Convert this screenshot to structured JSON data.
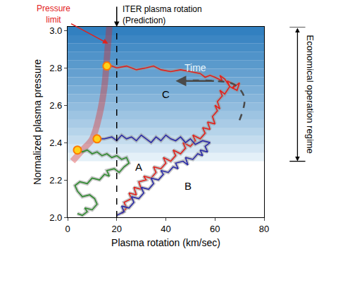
{
  "chart_data": {
    "type": "line",
    "x_label": "Plasma rotation (km/sec)",
    "y_label": "Normalized plasma pressure",
    "xlim": [
      0,
      80
    ],
    "xticks": [
      0,
      20,
      40,
      60,
      80
    ],
    "ylim": [
      2.0,
      3.02
    ],
    "yticks": [
      {
        "value": 2.0,
        "label": "2.0"
      },
      {
        "value": 2.2,
        "label": "2.2"
      },
      {
        "value": 2.4,
        "label": "2.4"
      },
      {
        "value": 2.6,
        "label": "2.6"
      },
      {
        "value": 2.8,
        "label": "2.8"
      },
      {
        "value": 3.0,
        "label": "3.0"
      }
    ],
    "grid": false,
    "series": [
      {
        "name": "C",
        "color": "#e3201b",
        "marker": "circle",
        "label": {
          "x": 40,
          "y": 2.66
        },
        "x": [
          22,
          24,
          23,
          26,
          25,
          28,
          27,
          30,
          29,
          32,
          31,
          34,
          36,
          35,
          38,
          40,
          39,
          42,
          44,
          43,
          46,
          48,
          47,
          50,
          52,
          51,
          54,
          56,
          55,
          58,
          57,
          60,
          59,
          61,
          60,
          62,
          61,
          63,
          62,
          64,
          66,
          65,
          68,
          67,
          70,
          69,
          66,
          64,
          62,
          63,
          60,
          58,
          56,
          54,
          50,
          46,
          42,
          38,
          35,
          32,
          28,
          24,
          20,
          18,
          16
        ],
        "values": [
          2.02,
          2.05,
          2.08,
          2.1,
          2.13,
          2.12,
          2.16,
          2.15,
          2.19,
          2.2,
          2.22,
          2.21,
          2.24,
          2.27,
          2.26,
          2.29,
          2.32,
          2.3,
          2.33,
          2.36,
          2.34,
          2.37,
          2.4,
          2.38,
          2.41,
          2.44,
          2.42,
          2.45,
          2.48,
          2.47,
          2.51,
          2.5,
          2.54,
          2.57,
          2.6,
          2.58,
          2.62,
          2.65,
          2.68,
          2.66,
          2.7,
          2.73,
          2.71,
          2.69,
          2.72,
          2.68,
          2.7,
          2.74,
          2.76,
          2.73,
          2.75,
          2.76,
          2.75,
          2.77,
          2.78,
          2.79,
          2.78,
          2.79,
          2.81,
          2.8,
          2.79,
          2.81,
          2.8,
          2.81,
          2.81
        ]
      },
      {
        "name": "B",
        "color": "#2a2aa8",
        "marker": "circle",
        "label": {
          "x": 49,
          "y": 2.17
        },
        "x": [
          20,
          23,
          22,
          25,
          27,
          26,
          29,
          31,
          30,
          33,
          35,
          34,
          37,
          39,
          38,
          41,
          43,
          45,
          44,
          47,
          49,
          48,
          51,
          53,
          55,
          54,
          57,
          56,
          58,
          55,
          52,
          50,
          48,
          46,
          44,
          42,
          40,
          38,
          36,
          34,
          32,
          30,
          28,
          26,
          24,
          22,
          20,
          18,
          15,
          12
        ],
        "values": [
          2.01,
          2.03,
          2.06,
          2.05,
          2.08,
          2.11,
          2.1,
          2.13,
          2.16,
          2.15,
          2.18,
          2.21,
          2.2,
          2.23,
          2.25,
          2.24,
          2.27,
          2.26,
          2.29,
          2.3,
          2.28,
          2.32,
          2.31,
          2.34,
          2.33,
          2.36,
          2.35,
          2.38,
          2.4,
          2.41,
          2.39,
          2.42,
          2.4,
          2.43,
          2.41,
          2.42,
          2.44,
          2.41,
          2.43,
          2.4,
          2.42,
          2.44,
          2.41,
          2.43,
          2.42,
          2.44,
          2.41,
          2.43,
          2.42,
          2.42
        ]
      },
      {
        "name": "A",
        "color": "#2e8b2e",
        "marker": "circle",
        "label": {
          "x": 29,
          "y": 2.27
        },
        "x": [
          4,
          6,
          8,
          7,
          10,
          12,
          11,
          9,
          6,
          4,
          3,
          5,
          8,
          10,
          13,
          15,
          17,
          16,
          19,
          21,
          23,
          25,
          24,
          22,
          20,
          18,
          16,
          14,
          12,
          10,
          8,
          6,
          4
        ],
        "values": [
          2.02,
          2.01,
          2.03,
          2.05,
          2.04,
          2.07,
          2.1,
          2.12,
          2.11,
          2.14,
          2.17,
          2.19,
          2.18,
          2.21,
          2.2,
          2.23,
          2.22,
          2.25,
          2.26,
          2.24,
          2.27,
          2.29,
          2.32,
          2.31,
          2.33,
          2.32,
          2.34,
          2.33,
          2.35,
          2.34,
          2.36,
          2.35,
          2.36
        ]
      }
    ],
    "pressure_limit": {
      "label": "Pressure\nlimit",
      "color": "#e3201b",
      "x": [
        2,
        6,
        10,
        13,
        15,
        16,
        17
      ],
      "values": [
        2.3,
        2.36,
        2.42,
        2.55,
        2.7,
        2.85,
        3.02
      ],
      "arrow_to": {
        "x": 16.5,
        "y": 2.93
      }
    },
    "reference_line": {
      "x": 20,
      "label": "ITER plasma rotation\n(Prediction)"
    },
    "regime": {
      "label": "Economical operation regime",
      "from": 2.3,
      "to": 3.02
    },
    "time_arrow": {
      "label": "Time",
      "label_x": 52,
      "label_y": 2.8,
      "x": [
        70,
        72,
        68,
        60,
        44
      ],
      "values": [
        2.52,
        2.64,
        2.71,
        2.73,
        2.73
      ]
    }
  }
}
